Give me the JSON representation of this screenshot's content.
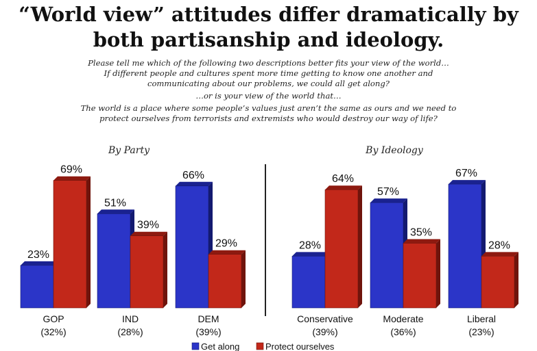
{
  "header": {
    "title_line1": "“World view” attitudes differ dramatically by",
    "title_line2": "both partisanship and ideology."
  },
  "question": {
    "line1": "Please tell me which of the following two descriptions better fits your view of the world…",
    "line2": "If different people and cultures spent more time getting to know one another and",
    "line3": "communicating about our problems, we could all get along?",
    "line4": "…or is your view of the world that…",
    "line5": "The world is a place where some people’s values just aren’t the same as ours and we need to",
    "line6": "protect ourselves from terrorists and extremists who would destroy our way of life?"
  },
  "colors": {
    "get_along": "#2b35c8",
    "protect": "#c2281a",
    "divider": "#222222"
  },
  "chart_data": [
    {
      "type": "bar",
      "title": "By Party",
      "categories": [
        "GOP",
        "IND",
        "DEM"
      ],
      "category_sublabels": [
        "(32%)",
        "(28%)",
        "(39%)"
      ],
      "series": [
        {
          "name": "Get along",
          "values": [
            23,
            51,
            66
          ],
          "labels": [
            "23%",
            "51%",
            "66%"
          ]
        },
        {
          "name": "Protect ourselves",
          "values": [
            69,
            39,
            29
          ],
          "labels": [
            "69%",
            "39%",
            "29%"
          ]
        }
      ],
      "ylim": [
        0,
        75
      ]
    },
    {
      "type": "bar",
      "title": "By Ideology",
      "categories": [
        "Conservative",
        "Moderate",
        "Liberal"
      ],
      "category_sublabels": [
        "(39%)",
        "(36%)",
        "(23%)"
      ],
      "series": [
        {
          "name": "Get along",
          "values": [
            28,
            57,
            67
          ],
          "labels": [
            "28%",
            "57%",
            "67%"
          ]
        },
        {
          "name": "Protect ourselves",
          "values": [
            64,
            35,
            28
          ],
          "labels": [
            "64%",
            "35%",
            "28%"
          ]
        }
      ],
      "ylim": [
        0,
        75
      ]
    }
  ],
  "legend": {
    "items": [
      {
        "label": "Get along"
      },
      {
        "label": "Protect ourselves"
      }
    ],
    "placement": "bottom"
  }
}
